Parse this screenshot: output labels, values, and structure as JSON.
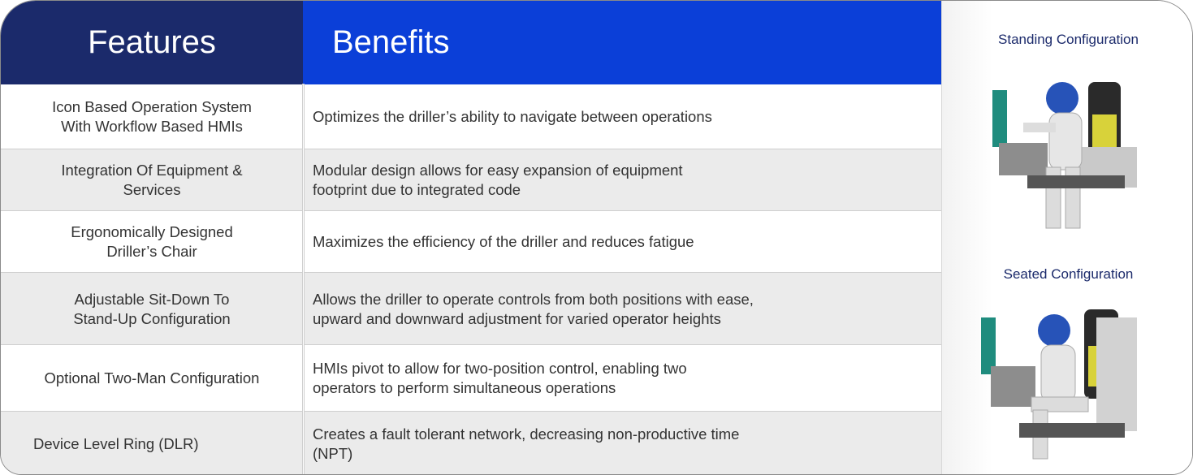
{
  "header": {
    "features_title": "Features",
    "benefits_title": "Benefits"
  },
  "table": {
    "rows": [
      [
        "Icon Based Operation System\nWith Workflow Based HMIs",
        "Optimizes the driller’s ability to navigate between operations"
      ],
      [
        "Integration Of Equipment &\nServices",
        "Modular design allows for easy expansion of equipment\nfootprint due to integrated code"
      ],
      [
        "Ergonomically Designed\nDriller’s Chair",
        "Maximizes the efficiency of the driller and reduces fatigue"
      ],
      [
        "Adjustable Sit-Down To\nStand-Up Configuration",
        "Allows the driller to operate controls from both positions with ease,\nupward and downward adjustment for varied operator heights"
      ],
      [
        "Optional Two-Man Configuration",
        "HMIs pivot to allow for two-position control, enabling two\noperators to perform simultaneous operations"
      ],
      [
        "Device Level Ring (DLR)",
        "Creates a fault tolerant network, decreasing non-productive time\n(NPT)"
      ]
    ]
  },
  "side": {
    "standing_label": "Standing Configuration",
    "seated_label": "Seated Configuration"
  }
}
